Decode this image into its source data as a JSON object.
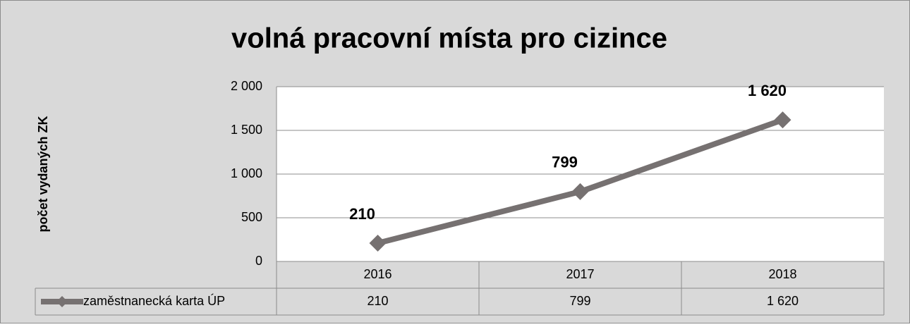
{
  "chart_data": {
    "type": "line",
    "title": "volná pracovní místa pro cizince",
    "y_label": "počet vydaných ZK",
    "categories": [
      "2016",
      "2017",
      "2018"
    ],
    "series": [
      {
        "name": "zaměstnanecká karta ÚP",
        "color": "#767171",
        "values": [
          210,
          799,
          1620
        ],
        "value_labels": [
          "210",
          "799",
          "1 620"
        ]
      }
    ],
    "ylim": [
      0,
      2000
    ],
    "yticks": [
      0,
      {
        "value": 500,
        "label": "500"
      },
      {
        "value": 1000,
        "label": "1 000"
      },
      {
        "value": 1500,
        "label": "1 500"
      },
      {
        "value": 2000,
        "label": "2 000"
      }
    ],
    "grid": true,
    "data_table": true
  }
}
